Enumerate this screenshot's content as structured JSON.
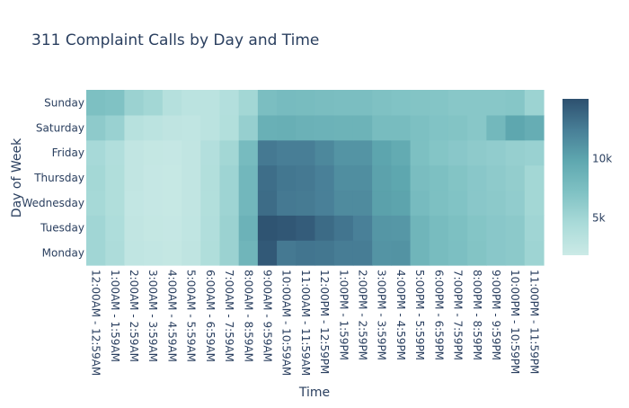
{
  "chart_data": {
    "type": "heatmap",
    "title": "311 Complaint Calls by Day and Time",
    "xlabel": "Time",
    "ylabel": "Day of Week",
    "x_categories": [
      "12:00AM - 12:59AM",
      "1:00AM - 1:59AM",
      "2:00AM - 2:59AM",
      "3:00AM - 3:59AM",
      "4:00AM - 4:59AM",
      "5:00AM - 5:59AM",
      "6:00AM - 6:59AM",
      "7:00AM - 7:59AM",
      "8:00AM - 8:59AM",
      "9:00AM - 9:59AM",
      "10:00AM - 10:59AM",
      "11:00AM - 11:59AM",
      "12:00PM - 12:59PM",
      "1:00PM - 1:59PM",
      "2:00PM - 2:59PM",
      "3:00PM - 3:59PM",
      "4:00PM - 4:59PM",
      "5:00PM - 5:59PM",
      "6:00PM - 6:59PM",
      "7:00PM - 7:59PM",
      "8:00PM - 8:59PM",
      "9:00PM - 9:59PM",
      "10:00PM - 10:59PM",
      "11:00PM - 11:59PM"
    ],
    "y_categories": [
      "Monday",
      "Tuesday",
      "Wednesday",
      "Thursday",
      "Friday",
      "Saturday",
      "Sunday"
    ],
    "values": [
      [
        5000,
        4200,
        2700,
        2500,
        2400,
        2800,
        4000,
        5400,
        8400,
        14500,
        12700,
        12900,
        12800,
        12500,
        12500,
        11000,
        11100,
        8400,
        7700,
        7400,
        6900,
        6500,
        6300,
        5200
      ],
      [
        5000,
        4100,
        2600,
        2400,
        2300,
        2700,
        3900,
        5400,
        8700,
        14800,
        14600,
        14300,
        13500,
        12900,
        12300,
        10900,
        10800,
        8400,
        7700,
        7300,
        6800,
        6500,
        6300,
        5100
      ],
      [
        4700,
        4000,
        2500,
        2300,
        2200,
        2600,
        3800,
        5200,
        8200,
        13400,
        12700,
        12600,
        12300,
        11600,
        11600,
        10200,
        10000,
        7800,
        7300,
        7000,
        6500,
        6300,
        6000,
        4900
      ],
      [
        4800,
        4000,
        2600,
        2300,
        2200,
        2600,
        3800,
        5200,
        8200,
        13300,
        12800,
        12700,
        12300,
        11400,
        11400,
        10100,
        9800,
        7600,
        7300,
        6900,
        6500,
        6200,
        5900,
        4900
      ],
      [
        4600,
        3900,
        2600,
        2400,
        2300,
        2600,
        3700,
        4900,
        7800,
        12700,
        12400,
        12400,
        11800,
        11000,
        11000,
        9900,
        9400,
        7300,
        6800,
        6500,
        6200,
        6000,
        5700,
        5500
      ],
      [
        6200,
        5500,
        3400,
        3100,
        2800,
        2700,
        3100,
        3800,
        5700,
        8900,
        9000,
        8800,
        8700,
        8600,
        8600,
        7700,
        7700,
        7300,
        7000,
        6900,
        6600,
        8100,
        9800,
        9200
      ],
      [
        7300,
        7100,
        5400,
        4900,
        3600,
        3100,
        3100,
        3700,
        4900,
        7500,
        7800,
        7700,
        7600,
        7500,
        7500,
        7200,
        7000,
        6900,
        6800,
        6600,
        6600,
        6600,
        6700,
        5300
      ]
    ],
    "zmin": 1800,
    "zmax": 15000,
    "colorscale": [
      "#cbeae6",
      "#aadbd9",
      "#80c2c4",
      "#5fa8b0",
      "#487f97",
      "#2d506f"
    ],
    "colorbar": {
      "tickvals": [
        5000,
        10000
      ],
      "ticktext": [
        "5k",
        "10k"
      ]
    }
  }
}
